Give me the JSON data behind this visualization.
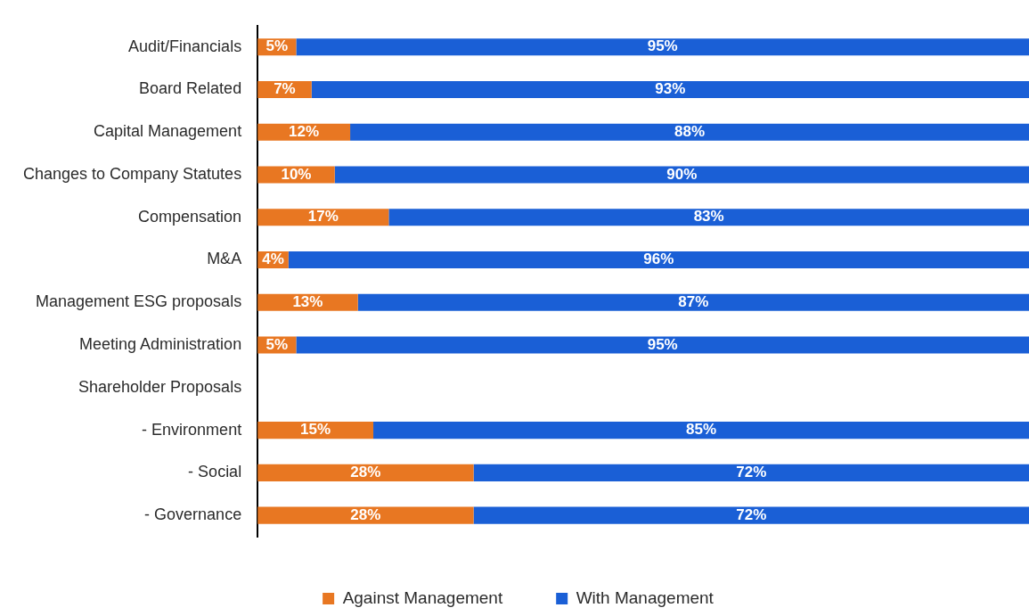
{
  "chart_data": {
    "type": "bar",
    "orientation": "horizontal",
    "stacked": true,
    "tick_labels": "y",
    "grid": false,
    "legend": "bottom",
    "categories": [
      "Audit/Financials",
      "Board Related",
      "Capital Management",
      "Changes to Company Statutes",
      "Compensation",
      "M&A",
      "Management ESG proposals",
      "Meeting Administration",
      "Shareholder Proposals",
      "- Environment",
      "- Social",
      "- Governance"
    ],
    "series": [
      {
        "name": "Against Management",
        "color": "#e87722",
        "values": [
          5,
          7,
          12,
          10,
          17,
          4,
          13,
          5,
          null,
          15,
          28,
          28
        ],
        "value_labels": [
          "5%",
          "7%",
          "12%",
          "10%",
          "17%",
          "4%",
          "13%",
          "5%",
          null,
          "15%",
          "28%",
          "28%"
        ]
      },
      {
        "name": "With Management",
        "color": "#1a5fd6",
        "values": [
          95,
          93,
          88,
          90,
          83,
          96,
          87,
          95,
          null,
          85,
          72,
          72
        ],
        "value_labels": [
          "95%",
          "93%",
          "88%",
          "90%",
          "83%",
          "96%",
          "87%",
          "95%",
          null,
          "85%",
          "72%",
          "72%"
        ]
      }
    ]
  }
}
